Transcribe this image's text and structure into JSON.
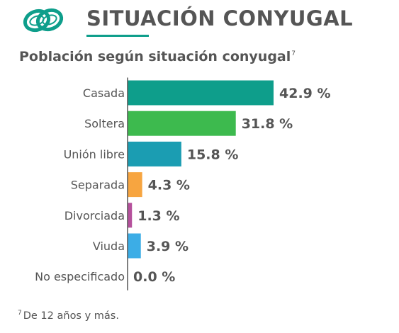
{
  "header": {
    "title": "SITUACIÓN CONYUGAL",
    "icon": "wedding-rings-icon",
    "accent_color": "#0e9e8b"
  },
  "subtitle": {
    "text": "Población según situación conyugal",
    "note_ref": "7"
  },
  "chart_data": {
    "type": "bar",
    "orientation": "horizontal",
    "title": "Población según situación conyugal",
    "categories": [
      "Casada",
      "Soltera",
      "Unión libre",
      "Separada",
      "Divorciada",
      "Viuda",
      "No especificado"
    ],
    "values": [
      42.9,
      31.8,
      15.8,
      4.3,
      1.3,
      3.9,
      0.0
    ],
    "value_labels": [
      "42.9 %",
      "31.8 %",
      "15.8 %",
      "4.3 %",
      "1.3 %",
      "3.9 %",
      "0.0 %"
    ],
    "colors": [
      "#0e9e8b",
      "#3dba4e",
      "#1b9db2",
      "#f7a540",
      "#b5509c",
      "#3cade6",
      "#0e9e8b"
    ],
    "unit": "%",
    "grid": false,
    "legend": "none"
  },
  "footnote": {
    "ref": "7",
    "text": "De 12 años y más."
  }
}
